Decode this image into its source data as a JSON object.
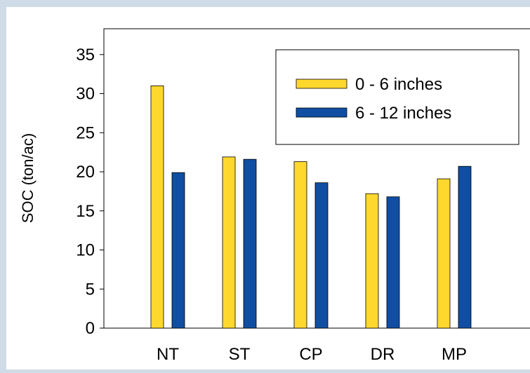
{
  "chart_data": {
    "type": "bar",
    "title": "",
    "xlabel": "",
    "ylabel": "SOC (ton/ac)",
    "categories": [
      "NT",
      "ST",
      "CP",
      "DR",
      "MP"
    ],
    "series": [
      {
        "name": "0 - 6 inches",
        "color": "#ffd82e",
        "values": [
          31.0,
          21.9,
          21.3,
          17.2,
          19.1
        ]
      },
      {
        "name": "6 - 12 inches",
        "color": "#0f4ea3",
        "values": [
          19.9,
          21.6,
          18.6,
          16.8,
          20.7
        ]
      }
    ],
    "ylim": [
      0,
      38.3
    ],
    "yticks": [
      "0",
      "5",
      "10",
      "15",
      "20",
      "25",
      "30",
      "35"
    ],
    "grid": false,
    "legend": "top-right"
  }
}
